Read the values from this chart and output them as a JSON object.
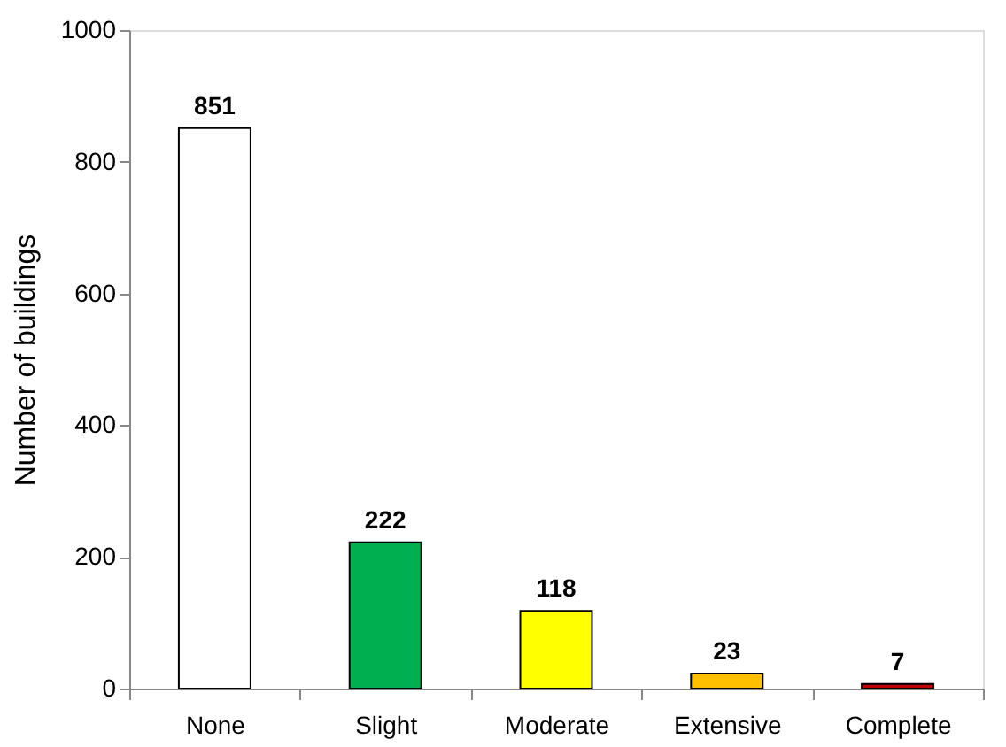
{
  "chart_data": {
    "type": "bar",
    "ylabel": "Number of buildings",
    "categories": [
      "None",
      "Slight",
      "Moderate",
      "Extensive",
      "Complete"
    ],
    "values": [
      851,
      222,
      118,
      23,
      7
    ],
    "colors": [
      "#ffffff",
      "#00b050",
      "#ffff00",
      "#ffc000",
      "#c00000"
    ],
    "ylim": [
      0,
      1000
    ],
    "yticks": [
      0,
      200,
      400,
      600,
      800,
      1000
    ],
    "grid": false,
    "data_labels": true,
    "legend": false
  }
}
